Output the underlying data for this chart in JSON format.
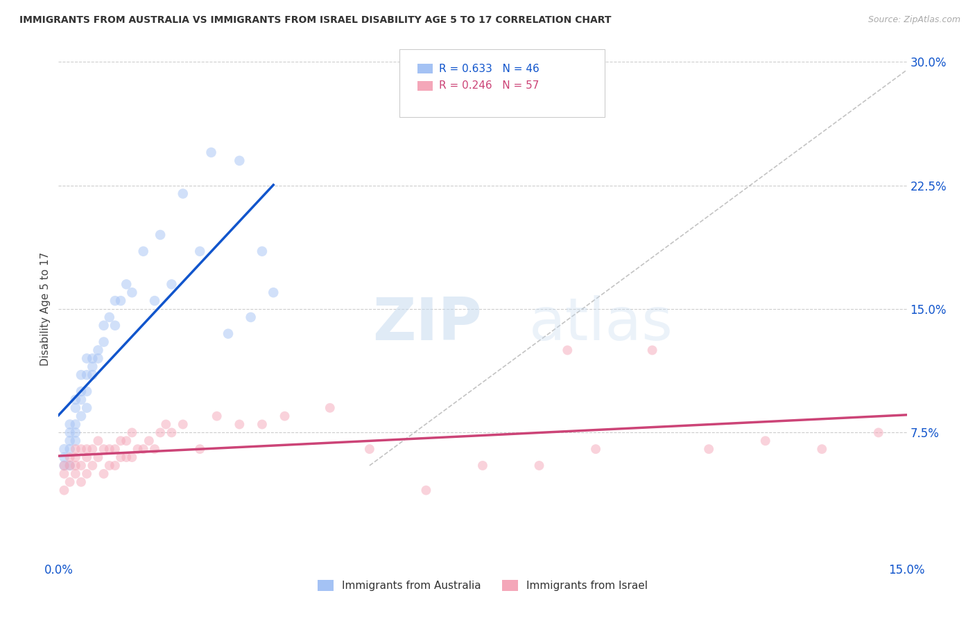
{
  "title": "IMMIGRANTS FROM AUSTRALIA VS IMMIGRANTS FROM ISRAEL DISABILITY AGE 5 TO 17 CORRELATION CHART",
  "source": "Source: ZipAtlas.com",
  "ylabel": "Disability Age 5 to 17",
  "xlim": [
    0.0,
    0.15
  ],
  "ylim": [
    0.0,
    0.3
  ],
  "xticks": [
    0.0,
    0.15
  ],
  "xticklabels": [
    "0.0%",
    "15.0%"
  ],
  "yticks_right": [
    0.075,
    0.15,
    0.225,
    0.3
  ],
  "yticklabels_right": [
    "7.5%",
    "15.0%",
    "22.5%",
    "30.0%"
  ],
  "legend_r1": "R = 0.633",
  "legend_n1": "N = 46",
  "legend_r2": "R = 0.246",
  "legend_n2": "N = 57",
  "legend_label1": "Immigrants from Australia",
  "legend_label2": "Immigrants from Israel",
  "color_australia": "#a4c2f4",
  "color_israel": "#f4a7b9",
  "color_trendline_australia": "#1155cc",
  "color_trendline_israel": "#cc4477",
  "background_color": "#ffffff",
  "grid_color": "#cccccc",
  "title_color": "#333333",
  "right_label_color": "#1155cc",
  "australia_x": [
    0.001,
    0.001,
    0.001,
    0.002,
    0.002,
    0.002,
    0.002,
    0.002,
    0.003,
    0.003,
    0.003,
    0.003,
    0.003,
    0.004,
    0.004,
    0.004,
    0.004,
    0.005,
    0.005,
    0.005,
    0.005,
    0.006,
    0.006,
    0.006,
    0.007,
    0.007,
    0.008,
    0.008,
    0.009,
    0.01,
    0.01,
    0.011,
    0.012,
    0.013,
    0.015,
    0.017,
    0.018,
    0.02,
    0.022,
    0.025,
    0.027,
    0.03,
    0.032,
    0.034,
    0.036,
    0.038
  ],
  "australia_y": [
    0.055,
    0.06,
    0.065,
    0.055,
    0.065,
    0.07,
    0.075,
    0.08,
    0.07,
    0.075,
    0.08,
    0.09,
    0.095,
    0.085,
    0.095,
    0.1,
    0.11,
    0.09,
    0.1,
    0.11,
    0.12,
    0.11,
    0.115,
    0.12,
    0.12,
    0.125,
    0.13,
    0.14,
    0.145,
    0.14,
    0.155,
    0.155,
    0.165,
    0.16,
    0.185,
    0.155,
    0.195,
    0.165,
    0.22,
    0.185,
    0.245,
    0.135,
    0.24,
    0.145,
    0.185,
    0.16
  ],
  "israel_x": [
    0.001,
    0.001,
    0.001,
    0.002,
    0.002,
    0.002,
    0.003,
    0.003,
    0.003,
    0.003,
    0.004,
    0.004,
    0.004,
    0.005,
    0.005,
    0.005,
    0.006,
    0.006,
    0.007,
    0.007,
    0.008,
    0.008,
    0.009,
    0.009,
    0.01,
    0.01,
    0.011,
    0.011,
    0.012,
    0.012,
    0.013,
    0.013,
    0.014,
    0.015,
    0.016,
    0.017,
    0.018,
    0.019,
    0.02,
    0.022,
    0.025,
    0.028,
    0.032,
    0.036,
    0.04,
    0.048,
    0.055,
    0.065,
    0.075,
    0.085,
    0.095,
    0.105,
    0.115,
    0.125,
    0.135,
    0.145,
    0.09
  ],
  "israel_y": [
    0.04,
    0.05,
    0.055,
    0.045,
    0.055,
    0.06,
    0.05,
    0.055,
    0.06,
    0.065,
    0.045,
    0.055,
    0.065,
    0.05,
    0.06,
    0.065,
    0.055,
    0.065,
    0.06,
    0.07,
    0.05,
    0.065,
    0.055,
    0.065,
    0.055,
    0.065,
    0.06,
    0.07,
    0.06,
    0.07,
    0.06,
    0.075,
    0.065,
    0.065,
    0.07,
    0.065,
    0.075,
    0.08,
    0.075,
    0.08,
    0.065,
    0.085,
    0.08,
    0.08,
    0.085,
    0.09,
    0.065,
    0.04,
    0.055,
    0.055,
    0.065,
    0.125,
    0.065,
    0.07,
    0.065,
    0.075,
    0.125
  ],
  "marker_size_australia": 110,
  "marker_size_israel": 100,
  "marker_alpha": 0.5,
  "trendline_lw": 2.5
}
